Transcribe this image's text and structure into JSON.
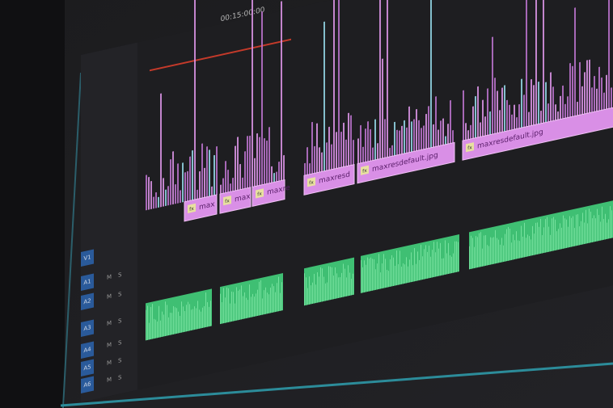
{
  "timeline": {
    "timecode": "00:15:00:00",
    "tracks": [
      "V1",
      "A1",
      "A2",
      "A3",
      "A4",
      "A5",
      "A6"
    ],
    "mute": "M",
    "solo": "S",
    "fx": "fx",
    "video_clips": [
      "max",
      "max",
      "maxre",
      "maxresd",
      "maxresdefault.jpg",
      "maxresdefault.jpg"
    ]
  }
}
